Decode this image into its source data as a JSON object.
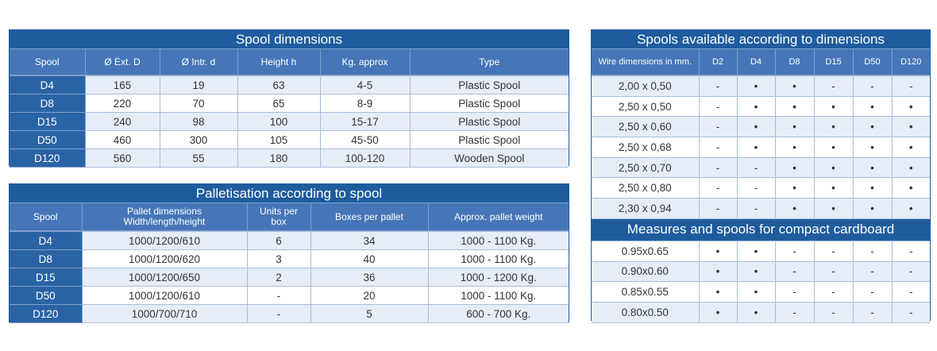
{
  "spool_dimensions": {
    "title": "Spool dimensions",
    "header": [
      "Spool",
      "Ø  Ext. D",
      "Ø Intr. d",
      "Height h",
      "Kg. approx",
      "Type"
    ],
    "rows": [
      [
        "D4",
        "165",
        "19",
        "63",
        "4-5",
        "Plastic Spool"
      ],
      [
        "D8",
        "220",
        "70",
        "65",
        "8-9",
        "Plastic Spool"
      ],
      [
        "D15",
        "240",
        "98",
        "100",
        "15-17",
        "Plastic Spool"
      ],
      [
        "D50",
        "460",
        "300",
        "105",
        "45-50",
        "Plastic Spool"
      ],
      [
        "D120",
        "560",
        "55",
        "180",
        "100-120",
        "Wooden Spool"
      ]
    ]
  },
  "palletisation": {
    "title": "Palletisation according to spool",
    "header": [
      "Spool",
      "Pallet dimensions\nWidth/length/height",
      "Units per\nbox",
      "Boxes per pallet",
      "Approx. pallet weight"
    ],
    "rows": [
      [
        "D4",
        "1000/1200/610",
        "6",
        "34",
        "1000  - 1100 Kg."
      ],
      [
        "D8",
        "1000/1200/620",
        "3",
        "40",
        "1000  - 1100 Kg."
      ],
      [
        "D15",
        "1000/1200/650",
        "2",
        "36",
        "1000  - 1200 Kg."
      ],
      [
        "D50",
        "1000/1200/610",
        "-",
        "20",
        "1000 -  1100 Kg."
      ],
      [
        "D120",
        "1000/700/710",
        "-",
        "5",
        "600 - 700 Kg."
      ]
    ]
  },
  "availability": {
    "title": "Spools available according to dimensions",
    "header": [
      "Wire dimensions in mm.",
      "D2",
      "D4",
      "D8",
      "D15",
      "D50",
      "D120"
    ],
    "rows": [
      [
        "2,00 x 0,50",
        "-",
        "•",
        "•",
        "-",
        "-",
        "-"
      ],
      [
        "2,50 x 0,50",
        "-",
        "•",
        "•",
        "•",
        "•",
        "•"
      ],
      [
        "2,50 x 0,60",
        "-",
        "•",
        "•",
        "•",
        "•",
        "•"
      ],
      [
        "2,50 x 0,68",
        "-",
        "•",
        "•",
        "•",
        "•",
        "•"
      ],
      [
        "2,50 x 0,70",
        "-",
        "-",
        "•",
        "•",
        "•",
        "•"
      ],
      [
        "2,50 x 0,80",
        "-",
        "-",
        "•",
        "•",
        "•",
        "•"
      ],
      [
        "2,30 x 0,94",
        "-",
        "-",
        "•",
        "•",
        "•",
        "•"
      ]
    ],
    "section_title": "Measures and spools for compact cardboard",
    "section_rows": [
      [
        "0.95x0.65",
        "•",
        "•",
        "-",
        "-",
        "-",
        "-"
      ],
      [
        "0.90x0.60",
        "•",
        "•",
        "-",
        "-",
        "-",
        "-"
      ],
      [
        "0.85x0.55",
        "•",
        "•",
        "-",
        "-",
        "-",
        "-"
      ],
      [
        "0.80x0.50",
        "•",
        "•",
        "-",
        "-",
        "-",
        "-"
      ]
    ]
  }
}
